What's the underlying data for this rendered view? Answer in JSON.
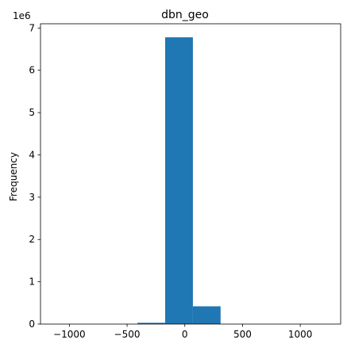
{
  "chart_data": {
    "type": "bar",
    "title": "dbn_geo",
    "xlabel": "",
    "ylabel": "Frequency",
    "y_offset_label": "1e6",
    "xlim": [
      -1250,
      1350
    ],
    "ylim": [
      0,
      7.1
    ],
    "x_ticks": [
      -1000,
      -500,
      0,
      500,
      1000
    ],
    "x_tick_labels": [
      "−1000",
      "−500",
      "0",
      "500",
      "1000"
    ],
    "y_ticks": [
      0,
      1,
      2,
      3,
      4,
      5,
      6,
      7
    ],
    "y_tick_labels": [
      "0",
      "1",
      "2",
      "3",
      "4",
      "5",
      "6",
      "7"
    ],
    "bin_edges": [
      -1130,
      -890,
      -650,
      -410,
      -170,
      70,
      310,
      550,
      790,
      1030,
      1270
    ],
    "values": [
      0,
      0,
      0,
      0.03,
      6.78,
      0.42,
      0,
      0,
      0,
      0
    ],
    "grid": false,
    "bar_color": "#1f77b4"
  }
}
